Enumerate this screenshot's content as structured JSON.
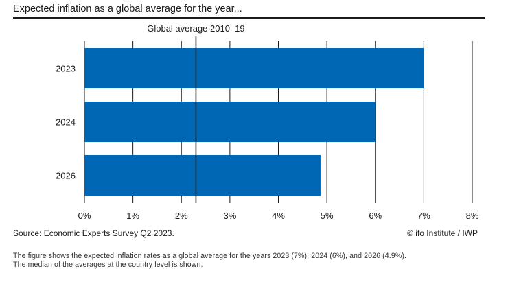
{
  "title": "Expected inflation as a global average for the year...",
  "source": "Source: Economic Experts Survey Q2 2023.",
  "credit": "© ifo Institute / IWP",
  "note_lines": [
    "The figure shows the expected inflation rates as a global average for the years 2023 (7%), 2024 (6%), and 2026 (4.9%).",
    "The median of the averages at the country level is shown."
  ],
  "chart_data": {
    "type": "bar",
    "orientation": "horizontal",
    "categories": [
      "2023",
      "2024",
      "2026"
    ],
    "values": [
      7.0,
      6.0,
      4.87
    ],
    "xlim": [
      0,
      8
    ],
    "xticks": [
      "0%",
      "1%",
      "2%",
      "3%",
      "4%",
      "5%",
      "6%",
      "7%",
      "8%"
    ],
    "grid": "vertical",
    "bar_color": "#0067b4",
    "reference_line": {
      "value": 2.3,
      "label": "Global average 2010–19"
    }
  }
}
